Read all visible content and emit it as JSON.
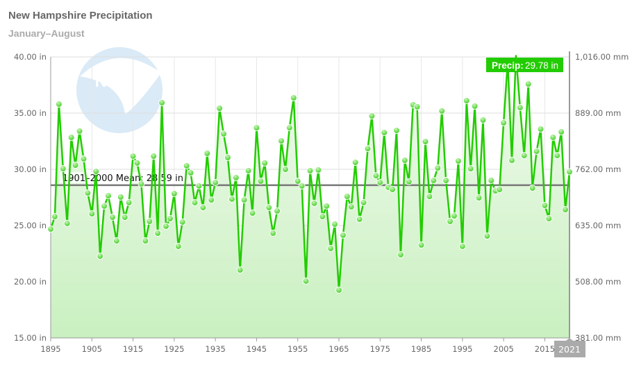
{
  "chart_data": {
    "type": "line",
    "title": "New Hampshire Precipitation",
    "subtitle": "January–August",
    "x_start": 1895,
    "x_end": 2021,
    "x_ticks": [
      "1895",
      "1905",
      "1915",
      "1925",
      "1935",
      "1945",
      "1955",
      "1965",
      "1975",
      "1985",
      "1995",
      "2005",
      "2015"
    ],
    "x_highlight_label": "2021",
    "ylim": [
      15,
      40
    ],
    "y_ticks_left": [
      "15.00 in",
      "20.00 in",
      "25.00 in",
      "30.00 in",
      "35.00 in",
      "40.00 in"
    ],
    "y_ticks_right": [
      "381.00 mm",
      "508.00 mm",
      "635.00 mm",
      "762.00 mm",
      "889.00 mm",
      "1,016.00 mm"
    ],
    "grid": true,
    "mean_value": 28.59,
    "mean_label": "1901–2000 Mean: 28.59 in",
    "tooltip": {
      "label": "Precip:",
      "value": "29.78 in"
    },
    "values": [
      24.69,
      25.8,
      35.8,
      30.06,
      25.19,
      32.84,
      30.37,
      33.4,
      30.93,
      27.9,
      26.05,
      29.81,
      22.28,
      26.73,
      27.65,
      25.74,
      23.64,
      27.53,
      25.74,
      27.04,
      31.17,
      30.56,
      28.7,
      23.64,
      25.37,
      31.17,
      24.32,
      35.93,
      24.94,
      25.62,
      27.84,
      23.15,
      25.31,
      30.31,
      29.69,
      27.04,
      28.52,
      26.6,
      31.42,
      27.28,
      28.83,
      35.43,
      33.15,
      31.05,
      27.35,
      29.26,
      21.05,
      27.28,
      29.88,
      26.11,
      33.7,
      28.95,
      30.56,
      26.6,
      24.32,
      26.3,
      32.53,
      30.0,
      33.7,
      36.36,
      28.95,
      28.52,
      20.06,
      29.88,
      26.98,
      29.94,
      25.8,
      26.73,
      22.96,
      25.12,
      19.26,
      24.14,
      27.59,
      26.67,
      30.62,
      25.56,
      27.04,
      31.85,
      34.75,
      29.44,
      28.83,
      33.27,
      28.4,
      28.21,
      33.46,
      22.41,
      30.8,
      28.89,
      35.74,
      35.56,
      23.27,
      32.47,
      27.59,
      29.01,
      30.12,
      35.19,
      29.01,
      25.37,
      25.86,
      30.74,
      23.15,
      36.11,
      30.06,
      35.62,
      27.47,
      34.38,
      24.07,
      29.01,
      28.09,
      28.21,
      34.14,
      39.6,
      30.8,
      40.1,
      35.49,
      31.23,
      37.59,
      28.33,
      31.6,
      33.58,
      26.79,
      25.62,
      32.84,
      31.23,
      33.33,
      26.42,
      29.78
    ],
    "colors": {
      "line": "#22cc00",
      "mean": "#777777",
      "tooltip_bg": "#22cc00",
      "highlight_label_bg": "#aaaaaa"
    },
    "watermark": "NOAA"
  }
}
